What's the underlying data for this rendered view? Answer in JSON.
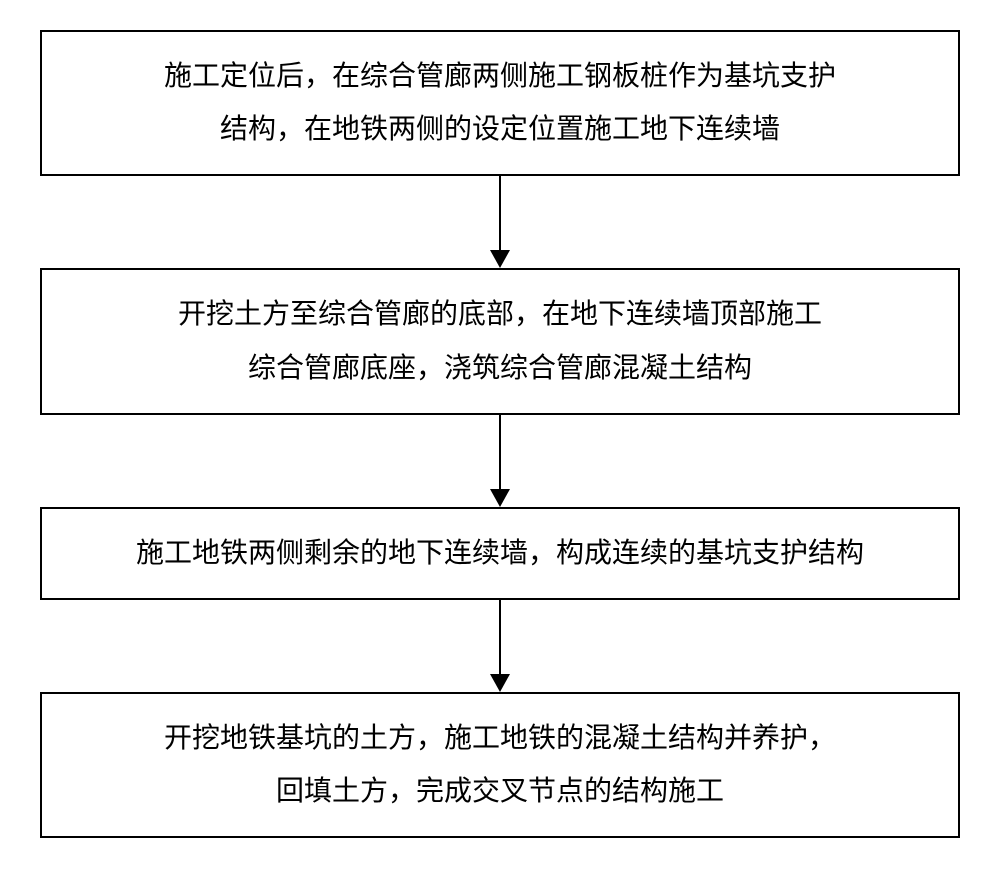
{
  "flowchart": {
    "type": "flowchart",
    "direction": "vertical",
    "background_color": "#ffffff",
    "node_border_color": "#000000",
    "node_border_width": 2,
    "node_fill": "#ffffff",
    "text_color": "#000000",
    "font_size": 28,
    "font_family": "SimSun",
    "arrow_color": "#000000",
    "arrow_width": 2,
    "nodes": [
      {
        "id": "step1",
        "line1": "施工定位后，在综合管廊两侧施工钢板桩作为基坑支护",
        "line2": "结构，在地铁两侧的设定位置施工地下连续墙"
      },
      {
        "id": "step2",
        "line1": "开挖土方至综合管廊的底部，在地下连续墙顶部施工",
        "line2": "综合管廊底座，浇筑综合管廊混凝土结构"
      },
      {
        "id": "step3",
        "line1": "施工地铁两侧剩余的地下连续墙，构成连续的基坑支护结构",
        "line2": ""
      },
      {
        "id": "step4",
        "line1": "开挖地铁基坑的土方，施工地铁的混凝土结构并养护，",
        "line2": "回填土方，完成交叉节点的结构施工"
      }
    ],
    "edges": [
      {
        "from": "step1",
        "to": "step2"
      },
      {
        "from": "step2",
        "to": "step3"
      },
      {
        "from": "step3",
        "to": "step4"
      }
    ]
  }
}
